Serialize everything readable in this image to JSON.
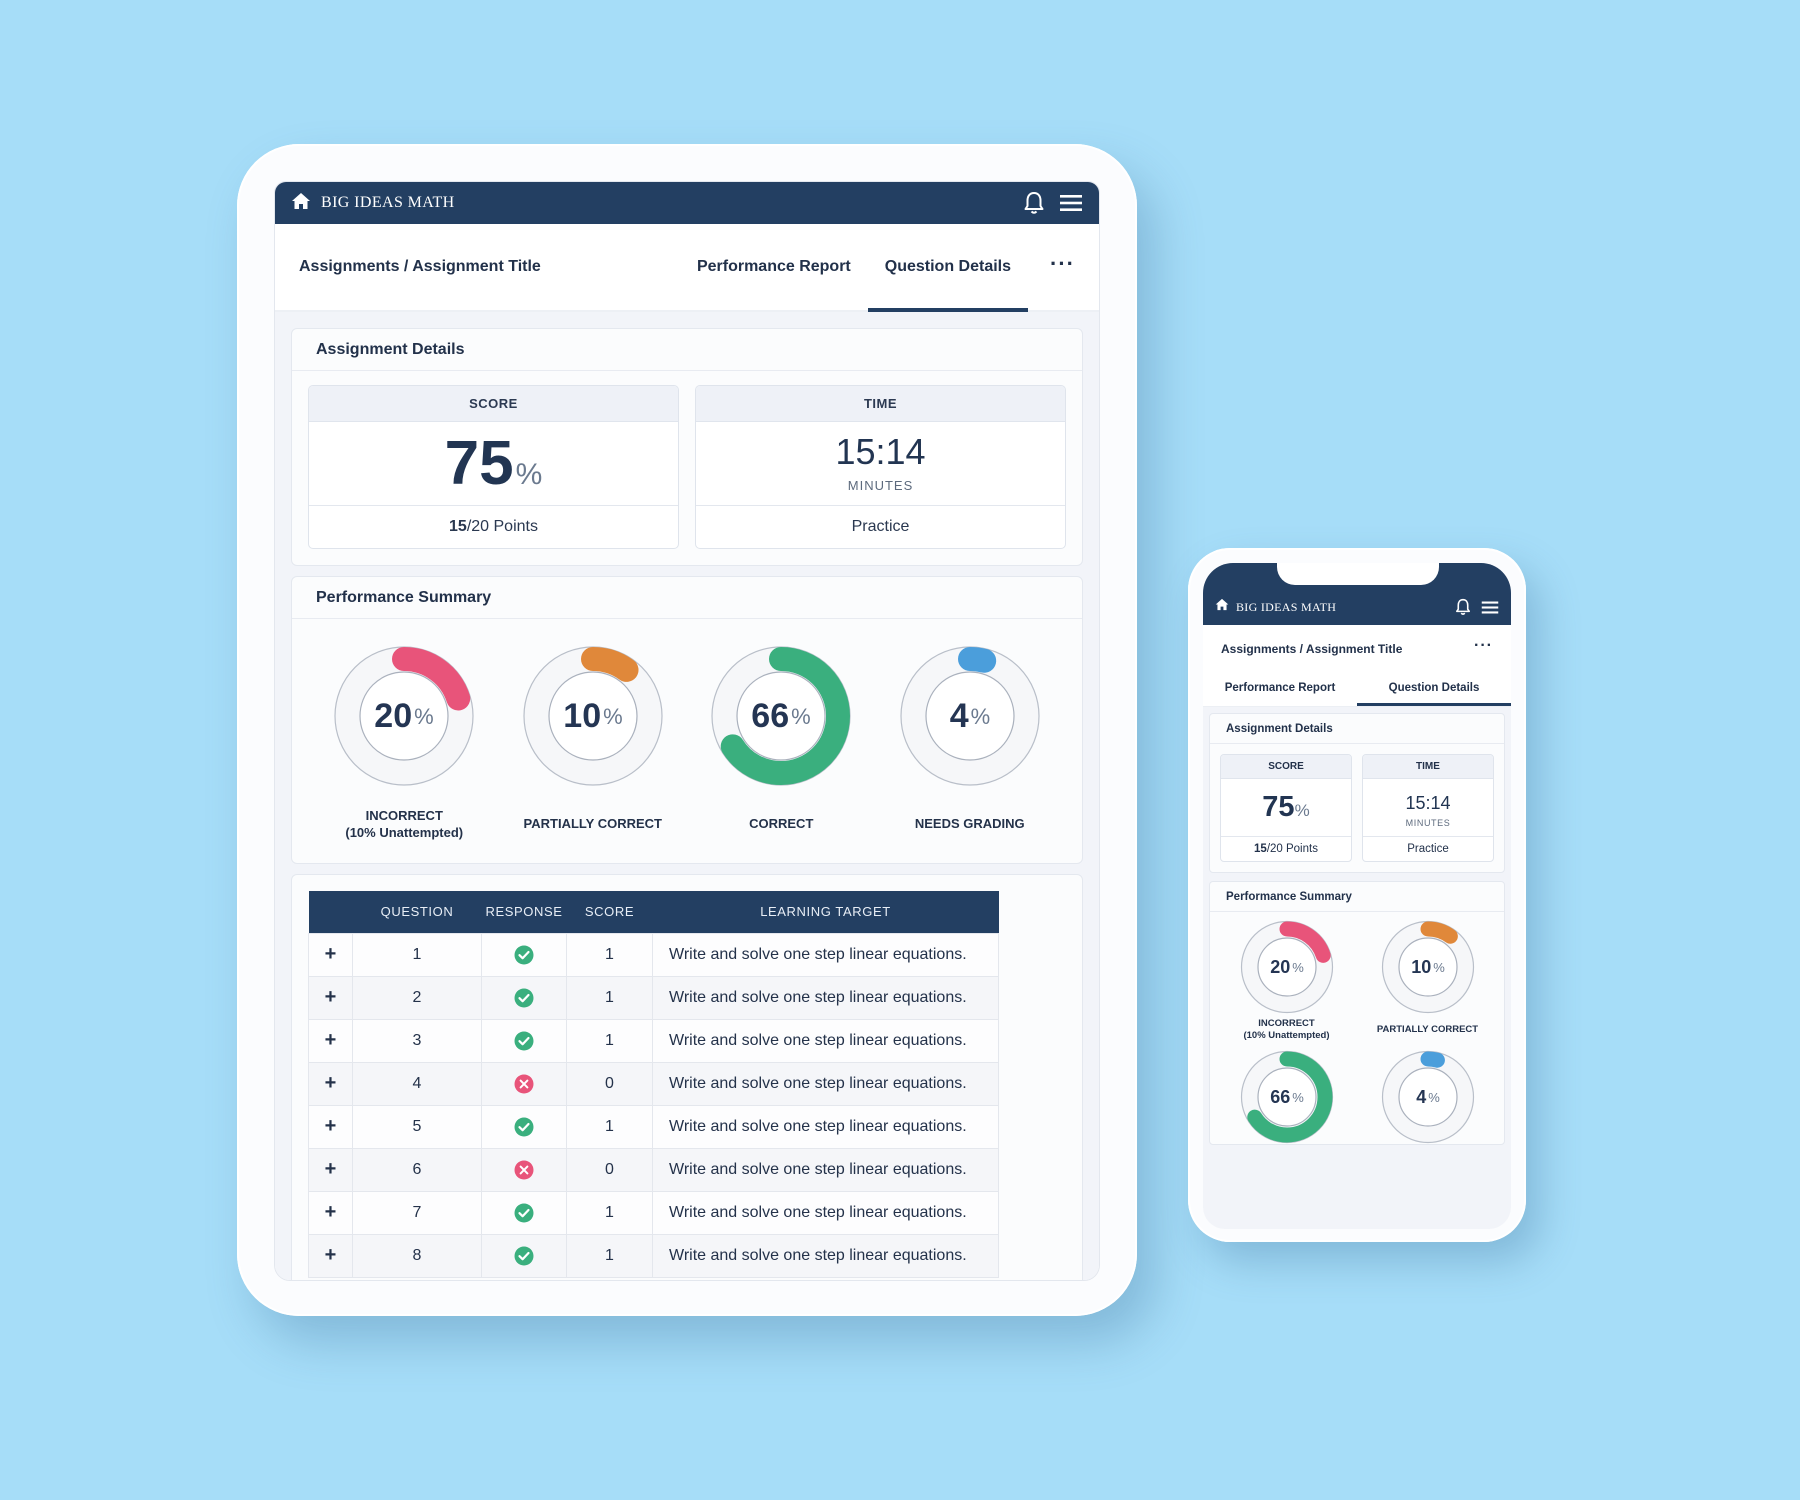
{
  "app": {
    "brand": "BIG IDEAS MATH"
  },
  "nav": {
    "breadcrumb": "Assignments / Assignment Title",
    "tabs": [
      {
        "label": "Performance Report",
        "active": false
      },
      {
        "label": "Question Details",
        "active": true
      }
    ],
    "more_label": "···"
  },
  "assignment_details": {
    "title": "Assignment Details",
    "score": {
      "title": "SCORE",
      "value": "75",
      "unit": "%",
      "points_earned": "15",
      "points_total": "/20 Points"
    },
    "time": {
      "title": "TIME",
      "value": "15:14",
      "unit": "MINUTES",
      "mode": "Practice"
    }
  },
  "performance_summary": {
    "title": "Performance Summary",
    "items": [
      {
        "value": 20,
        "label_line1": "INCORRECT",
        "label_line2": "(10% Unattempted)",
        "color": "#e8547a"
      },
      {
        "value": 10,
        "label_line1": "PARTIALLY CORRECT",
        "label_line2": "",
        "color": "#e0883a"
      },
      {
        "value": 66,
        "label_line1": "CORRECT",
        "label_line2": "",
        "color": "#3aaf7e"
      },
      {
        "value": 4,
        "label_line1": "NEEDS GRADING",
        "label_line2": "",
        "color": "#4b9edb"
      }
    ],
    "pct_symbol": "%"
  },
  "questions_table": {
    "columns": [
      "",
      "QUESTION",
      "RESPONSE",
      "SCORE",
      "LEARNING TARGET"
    ],
    "rows": [
      {
        "question": "1",
        "correct": true,
        "score": "1",
        "target": "Write and solve one step linear equations."
      },
      {
        "question": "2",
        "correct": true,
        "score": "1",
        "target": "Write and solve one step linear equations."
      },
      {
        "question": "3",
        "correct": true,
        "score": "1",
        "target": "Write and solve one step linear equations."
      },
      {
        "question": "4",
        "correct": false,
        "score": "0",
        "target": "Write and solve one step linear equations."
      },
      {
        "question": "5",
        "correct": true,
        "score": "1",
        "target": "Write and solve one step linear equations."
      },
      {
        "question": "6",
        "correct": false,
        "score": "0",
        "target": "Write and solve one step linear equations."
      },
      {
        "question": "7",
        "correct": true,
        "score": "1",
        "target": "Write and solve one step linear equations."
      },
      {
        "question": "8",
        "correct": true,
        "score": "1",
        "target": "Write and solve one step linear equations."
      }
    ],
    "expand_symbol": "+"
  },
  "icons": {
    "home": "home-icon",
    "bell": "bell-icon",
    "menu": "hamburger-menu-icon",
    "correct": "check-circle-icon",
    "incorrect": "x-circle-icon"
  },
  "colors": {
    "navy": "#233f62",
    "background": "#a6ddf8",
    "correct": "#3aaf7e",
    "incorrect": "#e8547a"
  }
}
